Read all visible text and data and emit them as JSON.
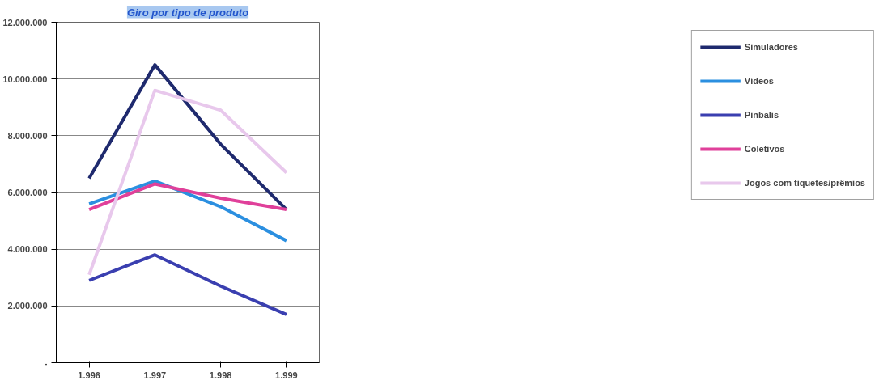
{
  "chart_data": {
    "type": "line",
    "title": "Giro por tipo de produto",
    "categories": [
      "1.996",
      "1.997",
      "1.998",
      "1.999"
    ],
    "series": [
      {
        "name": "Simuladores",
        "color": "#1f2a6e",
        "values": [
          6500000,
          10500000,
          7700000,
          5400000
        ]
      },
      {
        "name": "Vídeos",
        "color": "#2b8fe0",
        "values": [
          5600000,
          6400000,
          5500000,
          4300000
        ]
      },
      {
        "name": "Pinbalis",
        "color": "#3a3fb0",
        "values": [
          2900000,
          3800000,
          2700000,
          1700000
        ]
      },
      {
        "name": "Coletivos",
        "color": "#e0409a",
        "values": [
          5400000,
          6300000,
          5800000,
          5400000
        ]
      },
      {
        "name": "Jogos com tiquetes/prêmios",
        "color": "#e8c8ec",
        "values": [
          3100000,
          9600000,
          8900000,
          6700000
        ]
      }
    ],
    "ylim": [
      0,
      12000000
    ],
    "yticks": [
      {
        "value": 0,
        "label": "-"
      },
      {
        "value": 2000000,
        "label": "2.000.000"
      },
      {
        "value": 4000000,
        "label": "4.000.000"
      },
      {
        "value": 6000000,
        "label": "6.000.000"
      },
      {
        "value": 8000000,
        "label": "8.000.000"
      },
      {
        "value": 10000000,
        "label": "10.000.000"
      },
      {
        "value": 12000000,
        "label": "12.000.000"
      }
    ],
    "grid": "y",
    "legend": "right",
    "marker": "none",
    "line_style": "solid"
  }
}
